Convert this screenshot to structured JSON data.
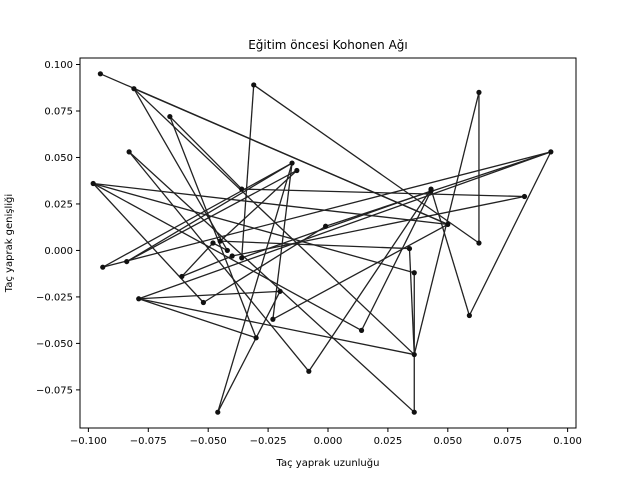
{
  "chart_data": {
    "type": "line",
    "title": "Eğitim öncesi Kohonen Ağı",
    "xlabel": "Taç yaprak uzunluğu",
    "ylabel": "Taç yaprak genişliği",
    "xlim": [
      -0.1035,
      0.1035
    ],
    "ylim": [
      -0.0955,
      0.1035
    ],
    "xticks": [
      -0.1,
      -0.075,
      -0.05,
      -0.025,
      0.0,
      0.025,
      0.05,
      0.075,
      0.1
    ],
    "xtick_labels": [
      "−0.100",
      "−0.075",
      "−0.050",
      "−0.025",
      "0.000",
      "0.025",
      "0.050",
      "0.075",
      "0.100"
    ],
    "yticks": [
      -0.075,
      -0.05,
      -0.025,
      0.0,
      0.025,
      0.05,
      0.075,
      0.1
    ],
    "ytick_labels": [
      "−0.075",
      "−0.050",
      "−0.025",
      "0.000",
      "0.025",
      "0.050",
      "0.075",
      "0.100"
    ],
    "grid": false,
    "line_color": "#222222",
    "marker": "circle",
    "points": [
      [
        -0.095,
        0.095
      ],
      [
        0.0,
        0.0
      ],
      [
        -0.034,
        -0.004
      ],
      [
        -0.052,
        -0.02
      ],
      [
        -0.02,
        0.05
      ],
      [
        -0.083,
        0.053
      ],
      [
        -0.008,
        -0.065
      ],
      [
        0.043,
        0.033
      ],
      [
        0.06,
        -0.034
      ],
      [
        0.09,
        0.05
      ],
      [
        0.025,
        0.015
      ],
      [
        0.082,
        0.028
      ],
      [
        -0.045,
        0.004
      ],
      [
        0.035,
        -0.01
      ],
      [
        0.045,
        -0.087
      ],
      [
        -0.08,
        -0.026
      ]
    ],
    "points_order_note": "",
    "path": [
      [
        -0.095,
        0.095
      ],
      [
        0.05,
        0.014
      ],
      [
        -0.098,
        0.036
      ],
      [
        0.036,
        -0.012
      ],
      [
        0.036,
        -0.087
      ],
      [
        -0.083,
        0.053
      ],
      [
        -0.008,
        -0.065
      ],
      [
        0.043,
        0.033
      ],
      [
        0.059,
        -0.035
      ],
      [
        0.093,
        0.053
      ],
      [
        -0.079,
        -0.026
      ],
      [
        -0.02,
        -0.022
      ],
      [
        -0.046,
        -0.087
      ],
      [
        -0.015,
        0.047
      ],
      [
        -0.084,
        -0.006
      ],
      [
        -0.013,
        0.043
      ],
      [
        -0.045,
        0.005
      ],
      [
        0.034,
        0.001
      ],
      [
        0.036,
        -0.056
      ],
      [
        -0.079,
        -0.026
      ],
      [
        -0.03,
        -0.047
      ],
      [
        -0.066,
        0.072
      ],
      [
        -0.036,
        0.033
      ],
      [
        0.082,
        0.029
      ],
      [
        -0.04,
        -0.003
      ],
      [
        -0.061,
        -0.014
      ],
      [
        -0.048,
        0.004
      ],
      [
        -0.042,
        0.0
      ],
      [
        -0.081,
        0.087
      ],
      [
        0.036,
        -0.056
      ],
      [
        0.063,
        0.085
      ],
      [
        0.063,
        0.004
      ],
      [
        -0.031,
        0.089
      ],
      [
        -0.036,
        -0.004
      ],
      [
        0.043,
        0.032
      ],
      [
        0.014,
        -0.043
      ],
      [
        -0.098,
        0.036
      ],
      [
        -0.052,
        -0.028
      ],
      [
        -0.001,
        0.013
      ],
      [
        0.093,
        0.053
      ],
      [
        -0.094,
        -0.009
      ],
      [
        -0.015,
        0.047
      ],
      [
        -0.023,
        -0.037
      ],
      [
        0.05,
        0.014
      ],
      [
        -0.081,
        0.087
      ]
    ]
  }
}
